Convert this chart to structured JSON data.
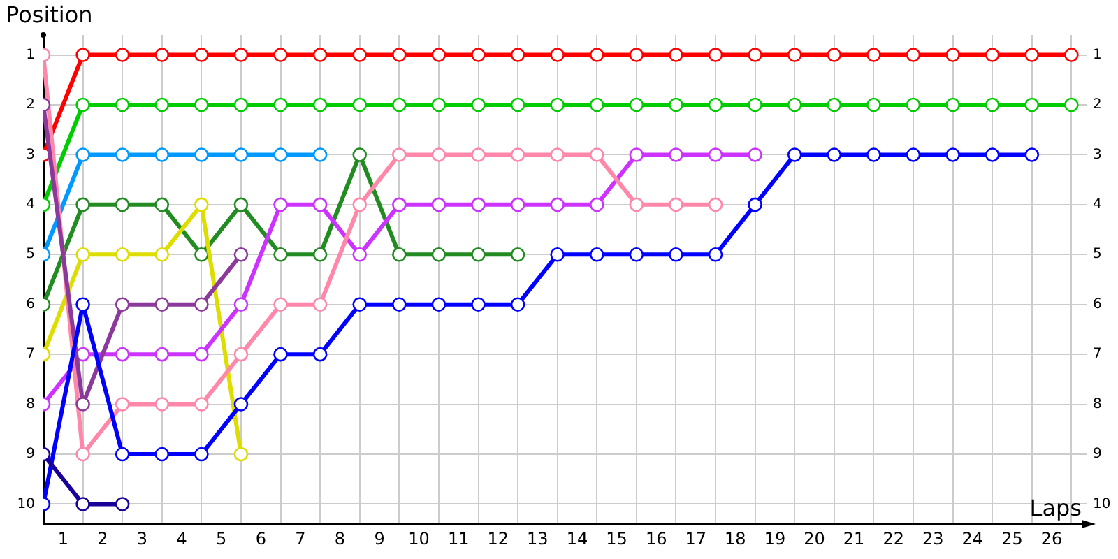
{
  "chart_data": {
    "type": "line",
    "xlabel": "Laps",
    "ylabel": "Position",
    "marker": "circle",
    "line_style": "solid",
    "grid": true,
    "x": [
      0,
      1,
      2,
      3,
      4,
      5,
      6,
      7,
      8,
      9,
      10,
      11,
      12,
      13,
      14,
      15,
      16,
      17,
      18,
      19,
      20,
      21,
      22,
      23,
      24,
      25,
      26
    ],
    "xlim": [
      0,
      26.4
    ],
    "xticks": [
      {
        "value": 0,
        "label": null
      },
      {
        "value": 0.5,
        "label": "1"
      },
      {
        "value": 1,
        "label": null
      },
      {
        "value": 1.5,
        "label": "2"
      },
      {
        "value": 2,
        "label": null
      },
      {
        "value": 2.5,
        "label": "3"
      },
      {
        "value": 3,
        "label": null
      },
      {
        "value": 3.5,
        "label": "4"
      },
      {
        "value": 4,
        "label": null
      },
      {
        "value": 4.5,
        "label": "5"
      },
      {
        "value": 5,
        "label": null
      },
      {
        "value": 5.5,
        "label": "6"
      },
      {
        "value": 6,
        "label": null
      },
      {
        "value": 6.5,
        "label": "7"
      },
      {
        "value": 7,
        "label": null
      },
      {
        "value": 7.5,
        "label": "8"
      },
      {
        "value": 8,
        "label": null
      },
      {
        "value": 8.5,
        "label": "9"
      },
      {
        "value": 9,
        "label": null
      },
      {
        "value": 9.5,
        "label": "10"
      },
      {
        "value": 10,
        "label": null
      },
      {
        "value": 10.5,
        "label": "11"
      },
      {
        "value": 11,
        "label": null
      },
      {
        "value": 11.5,
        "label": "12"
      },
      {
        "value": 12,
        "label": null
      },
      {
        "value": 12.5,
        "label": "13"
      },
      {
        "value": 13,
        "label": null
      },
      {
        "value": 13.5,
        "label": "14"
      },
      {
        "value": 14,
        "label": null
      },
      {
        "value": 14.5,
        "label": "15"
      },
      {
        "value": 15,
        "label": null
      },
      {
        "value": 15.5,
        "label": "16"
      },
      {
        "value": 16,
        "label": null
      },
      {
        "value": 16.5,
        "label": "17"
      },
      {
        "value": 17,
        "label": null
      },
      {
        "value": 17.5,
        "label": "18"
      },
      {
        "value": 18,
        "label": null
      },
      {
        "value": 18.5,
        "label": "19"
      },
      {
        "value": 19,
        "label": null
      },
      {
        "value": 19.5,
        "label": "20"
      },
      {
        "value": 20,
        "label": null
      },
      {
        "value": 20.5,
        "label": "21"
      },
      {
        "value": 21,
        "label": null
      },
      {
        "value": 21.5,
        "label": "22"
      },
      {
        "value": 22,
        "label": null
      },
      {
        "value": 22.5,
        "label": "23"
      },
      {
        "value": 23,
        "label": null
      },
      {
        "value": 23.5,
        "label": "24"
      },
      {
        "value": 24,
        "label": null
      },
      {
        "value": 24.5,
        "label": "25"
      },
      {
        "value": 25,
        "label": null
      },
      {
        "value": 25.5,
        "label": "26"
      },
      {
        "value": 26,
        "label": null
      }
    ],
    "ylim": [
      10.4,
      0.6
    ],
    "yticks": [
      1,
      2,
      3,
      4,
      5,
      6,
      7,
      8,
      9,
      10
    ],
    "y2lim": [
      10.4,
      0.6
    ],
    "y2ticks": [
      1,
      2,
      3,
      4,
      5,
      6,
      7,
      8,
      9,
      10
    ],
    "series": [
      {
        "color": "#ff0000",
        "values": [
          3,
          1,
          1,
          1,
          1,
          1,
          1,
          1,
          1,
          1,
          1,
          1,
          1,
          1,
          1,
          1,
          1,
          1,
          1,
          1,
          1,
          1,
          1,
          1,
          1,
          1,
          1
        ]
      },
      {
        "color": "#00cc00",
        "values": [
          4,
          2,
          2,
          2,
          2,
          2,
          2,
          2,
          2,
          2,
          2,
          2,
          2,
          2,
          2,
          2,
          2,
          2,
          2,
          2,
          2,
          2,
          2,
          2,
          2,
          2,
          2
        ]
      },
      {
        "color": "#0099ff",
        "values": [
          5,
          3,
          3,
          3,
          3,
          3,
          3,
          3,
          null,
          null,
          null,
          null,
          null,
          null,
          null,
          null,
          null,
          null,
          null,
          null,
          null,
          null,
          null,
          null,
          null,
          null,
          null
        ]
      },
      {
        "color": "#228b22",
        "values": [
          6,
          4,
          4,
          4,
          5,
          4,
          5,
          5,
          3,
          5,
          5,
          5,
          5,
          null,
          null,
          null,
          null,
          null,
          null,
          null,
          null,
          null,
          null,
          null,
          null,
          null,
          null
        ]
      },
      {
        "color": "#dddd00",
        "values": [
          7,
          5,
          5,
          5,
          4,
          9,
          null,
          null,
          null,
          null,
          null,
          null,
          null,
          null,
          null,
          null,
          null,
          null,
          null,
          null,
          null,
          null,
          null,
          null,
          null,
          null,
          null
        ]
      },
      {
        "color": "#cc33ff",
        "values": [
          8,
          7,
          7,
          7,
          7,
          6,
          4,
          4,
          5,
          4,
          4,
          4,
          4,
          4,
          4,
          3,
          3,
          3,
          3,
          null,
          null,
          null,
          null,
          null,
          null,
          null,
          null
        ]
      },
      {
        "color": "#ff88aa",
        "values": [
          1,
          9,
          8,
          8,
          8,
          7,
          6,
          6,
          4,
          3,
          3,
          3,
          3,
          3,
          3,
          4,
          4,
          4,
          null,
          null,
          null,
          null,
          null,
          null,
          null,
          null,
          null
        ]
      },
      {
        "color": "#8b3a9b",
        "values": [
          2,
          8,
          6,
          6,
          6,
          5,
          null,
          null,
          null,
          null,
          null,
          null,
          null,
          null,
          null,
          null,
          null,
          null,
          null,
          null,
          null,
          null,
          null,
          null,
          null,
          null,
          null
        ]
      },
      {
        "color": "#0000ff",
        "values": [
          10,
          6,
          9,
          9,
          9,
          8,
          7,
          7,
          6,
          6,
          6,
          6,
          6,
          5,
          5,
          5,
          5,
          5,
          4,
          3,
          3,
          3,
          3,
          3,
          3,
          3,
          null
        ]
      },
      {
        "color": "#1a0099",
        "values": [
          9,
          10,
          10,
          null,
          null,
          null,
          null,
          null,
          null,
          null,
          null,
          null,
          null,
          null,
          null,
          null,
          null,
          null,
          null,
          null,
          null,
          null,
          null,
          null,
          null,
          null,
          null
        ]
      }
    ]
  }
}
